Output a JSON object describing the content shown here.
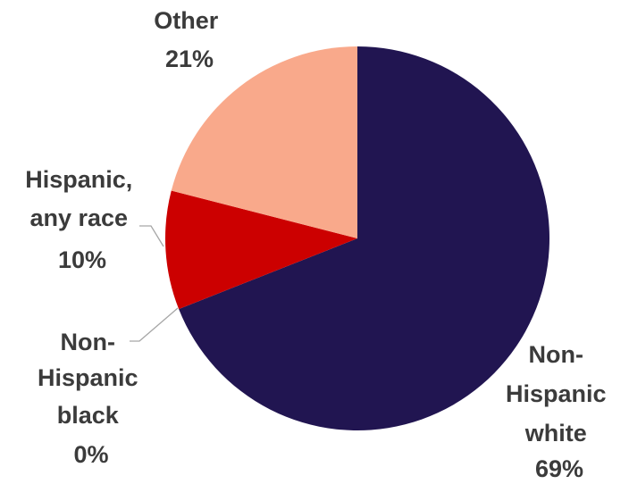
{
  "chart_data": {
    "type": "pie",
    "slices": [
      {
        "label": "Non-Hispanic white",
        "value": 69,
        "value_label": "69%",
        "color": "#211551",
        "label_lines": [
          "Non-",
          "Hispanic",
          "white",
          "69%"
        ]
      },
      {
        "label": "Non-Hispanic black",
        "value": 0,
        "value_label": "0%",
        "color": "#0d0d3a",
        "label_lines": [
          "Non-",
          "Hispanic",
          "black",
          "0%"
        ]
      },
      {
        "label": "Hispanic, any race",
        "value": 10,
        "value_label": "10%",
        "color": "#cc0000",
        "label_lines": [
          "Hispanic,",
          "any race",
          "10%"
        ]
      },
      {
        "label": "Other",
        "value": 21,
        "value_label": "21%",
        "color": "#f9a98b",
        "label_lines": [
          "Other",
          "21%"
        ]
      }
    ],
    "start_angle": "12 o'clock",
    "direction": "clockwise",
    "legend": "none",
    "title": ""
  }
}
